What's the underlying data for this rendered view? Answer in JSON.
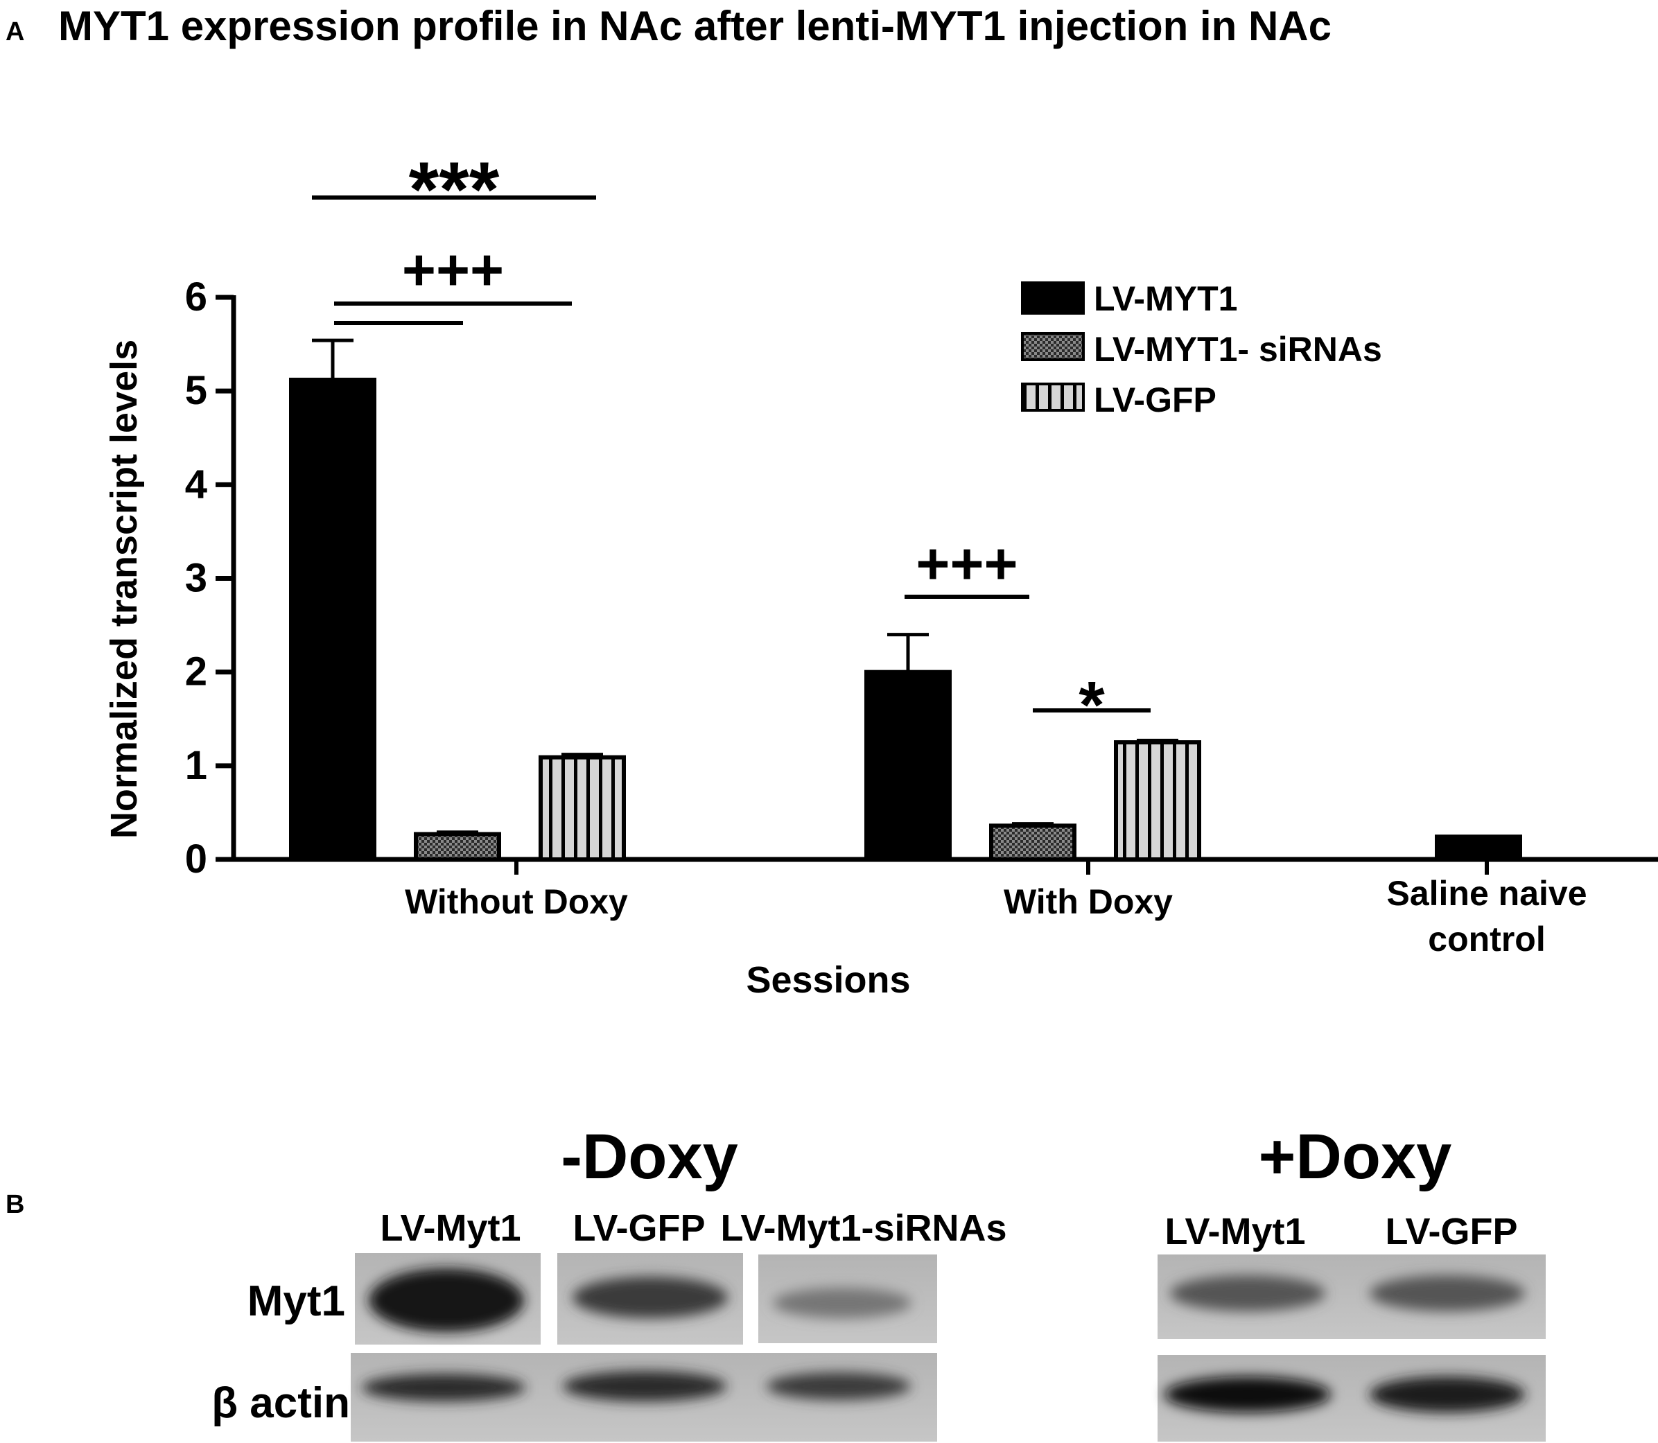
{
  "panel_a": {
    "letter": "A",
    "title": "MYT1 expression profile in NAc after lenti-MYT1 injection in NAc"
  },
  "panel_b": {
    "letter": "B",
    "groups": [
      {
        "heading": "-Doxy",
        "lanes": [
          "LV-Myt1",
          "LV-GFP",
          "LV-Myt1-siRNAs"
        ]
      },
      {
        "heading": "+Doxy",
        "lanes": [
          "LV-Myt1",
          "LV-GFP"
        ]
      }
    ],
    "row_labels": [
      "Myt1",
      "β actin"
    ]
  },
  "chart_data": {
    "type": "bar",
    "xlabel": "Sessions",
    "ylabel": "Normalized transcript levels",
    "ylim": [
      0,
      6
    ],
    "yticks": [
      "0",
      "1",
      "2",
      "3",
      "4",
      "5",
      "6"
    ],
    "categories": [
      "Without Doxy",
      "With Doxy",
      "Saline naive\ncontrol"
    ],
    "series": [
      {
        "name": "LV-MYT1",
        "pattern": "solid",
        "values": [
          5.12,
          2.0,
          null
        ],
        "errors": [
          0.42,
          0.4,
          null
        ]
      },
      {
        "name": "LV-MYT1- siRNAs",
        "pattern": "checker",
        "values": [
          0.27,
          0.36,
          null
        ],
        "errors": [
          0.02,
          0.02,
          null
        ]
      },
      {
        "name": "LV-GFP",
        "pattern": "stripes",
        "values": [
          1.09,
          1.25,
          null
        ],
        "errors": [
          0.03,
          0.02,
          null
        ]
      }
    ],
    "control": {
      "category": "Saline naive\ncontrol",
      "value": 0.25
    },
    "significance": [
      {
        "label": "***",
        "from": {
          "series": 0,
          "category": 0
        },
        "to": {
          "series": 2,
          "category": 0
        }
      },
      {
        "label": "+++",
        "from": {
          "series": 0,
          "category": 0
        },
        "to": {
          "series": 2,
          "category": 0
        }
      },
      {
        "label": "",
        "from": {
          "series": 0,
          "category": 0
        },
        "to": {
          "series": 1,
          "category": 0
        }
      },
      {
        "label": "+++",
        "from": {
          "series": 0,
          "category": 1
        },
        "to": {
          "series": 1,
          "category": 1
        }
      },
      {
        "label": "*",
        "from": {
          "series": 1,
          "category": 1
        },
        "to": {
          "series": 2,
          "category": 1
        }
      }
    ],
    "legend_position": "top-right",
    "colors": {
      "bar": "#000000",
      "checker_light": "#8a8a8a",
      "stripe_light": "#d6d6d6"
    }
  }
}
